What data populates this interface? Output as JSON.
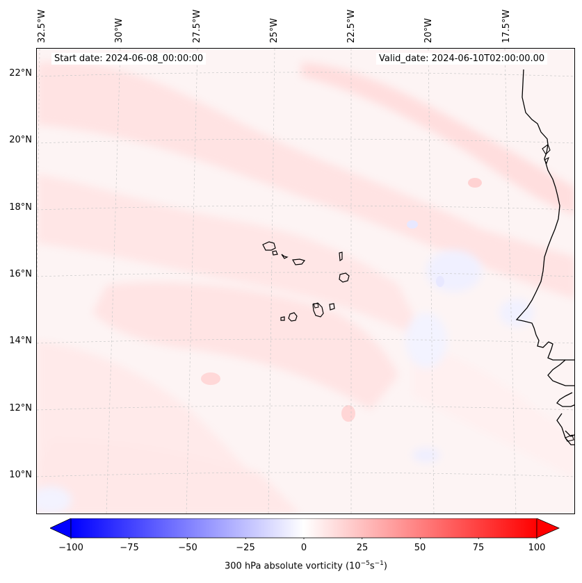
{
  "map": {
    "start_date": "Start date: 2024-06-08_00:00:00",
    "valid_date": "Valid_date: 2024-06-10T02:00:00.00",
    "longitude_labels": [
      "32.5°W",
      "30°W",
      "27.5°W",
      "25°W",
      "22.5°W",
      "20°W",
      "17.5°W"
    ],
    "latitude_labels": [
      "22°N",
      "20°N",
      "18°N",
      "16°N",
      "14°N",
      "12°N",
      "10°N"
    ],
    "features": [
      "Cape Verde islands",
      "West African coastline"
    ],
    "colormap": "bwr",
    "colors": {
      "min": "#0000ff",
      "mid": "#ffffff",
      "max": "#ff0000",
      "coast": "#000000",
      "grid": "#c8c8c8"
    }
  },
  "colorbar": {
    "label": "300 hPa absolute vorticity (10",
    "unit_exp1": "−5",
    "unit_mid": "s",
    "unit_exp2": "−1",
    "unit_close": ")",
    "ticks": [
      "−100",
      "−75",
      "−50",
      "−25",
      "0",
      "25",
      "50",
      "75",
      "100"
    ],
    "min": -100,
    "max": 100,
    "extend": "both"
  }
}
